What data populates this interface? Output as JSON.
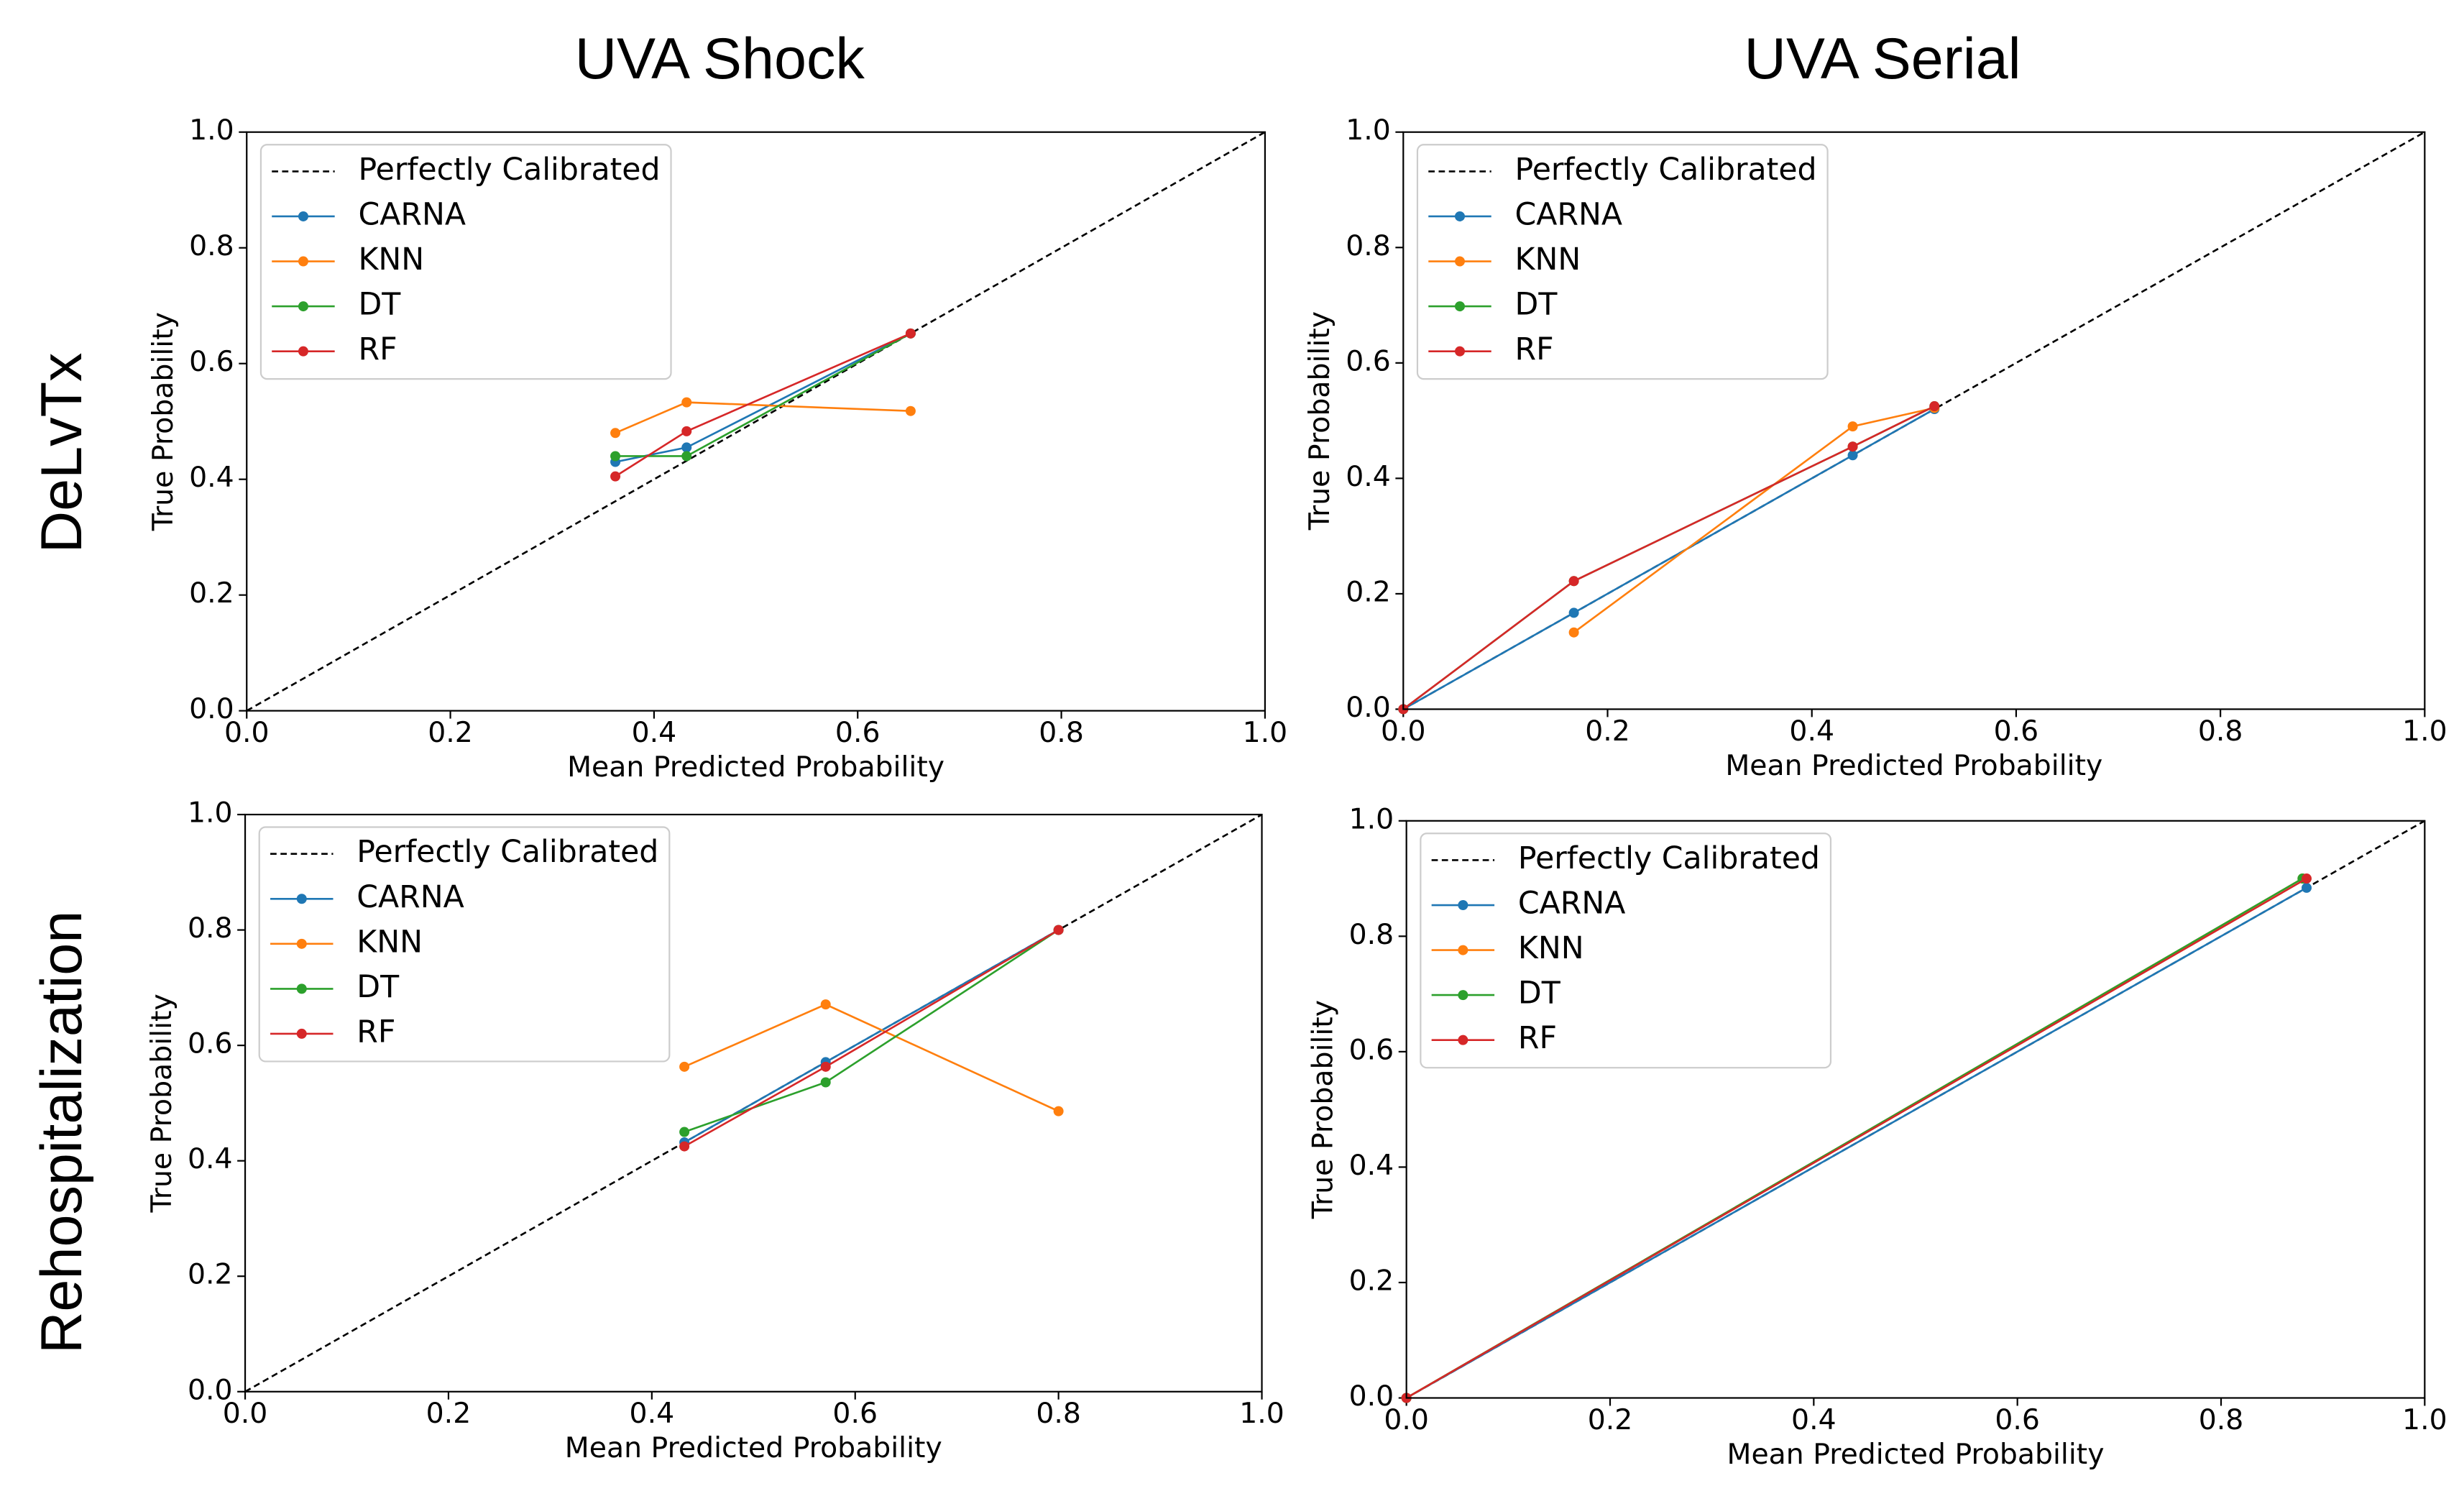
{
  "column_titles": [
    "UVA Shock",
    "UVA Serial"
  ],
  "row_labels": [
    "DeLvTx",
    "Rehospitalization"
  ],
  "chart_data": [
    {
      "type": "line",
      "x_label": "Mean Predicted Probability",
      "y_label": "True Probability",
      "xlim": [
        0,
        1
      ],
      "ylim": [
        0,
        1
      ],
      "legend": "upper left",
      "xticks": [
        {
          "value": 0,
          "label": "0.0"
        },
        {
          "value": 0.2,
          "label": "0.2"
        },
        {
          "value": 0.4,
          "label": "0.4"
        },
        {
          "value": 0.6,
          "label": "0.6"
        },
        {
          "value": 0.8,
          "label": "0.8"
        },
        {
          "value": 1,
          "label": "1.0"
        }
      ],
      "yticks": [
        {
          "value": 0,
          "label": "0.0"
        },
        {
          "value": 0.2,
          "label": "0.2"
        },
        {
          "value": 0.4,
          "label": "0.4"
        },
        {
          "value": 0.6,
          "label": "0.6"
        },
        {
          "value": 0.8,
          "label": "0.8"
        },
        {
          "value": 1,
          "label": "1.0"
        }
      ],
      "series": [
        {
          "name": "Perfectly Calibrated",
          "color": "#000000",
          "dashed": true,
          "markers": false,
          "x": [
            0,
            1
          ],
          "values": [
            0,
            1
          ]
        },
        {
          "name": "CARNA",
          "color": "#1f77b4",
          "dashed": false,
          "markers": true,
          "x": [
            0.362,
            0.432,
            0.652
          ],
          "values": [
            0.43,
            0.455,
            0.652
          ]
        },
        {
          "name": "KNN",
          "color": "#ff7f0e",
          "dashed": false,
          "markers": true,
          "x": [
            0.362,
            0.432,
            0.652
          ],
          "values": [
            0.48,
            0.533,
            0.518
          ]
        },
        {
          "name": "DT",
          "color": "#2ca02c",
          "dashed": false,
          "markers": true,
          "x": [
            0.362,
            0.432,
            0.652
          ],
          "values": [
            0.44,
            0.44,
            0.652
          ]
        },
        {
          "name": "RF",
          "color": "#d62728",
          "dashed": false,
          "markers": true,
          "x": [
            0.362,
            0.432,
            0.652
          ],
          "values": [
            0.405,
            0.483,
            0.652
          ]
        }
      ]
    },
    {
      "type": "line",
      "x_label": "Mean Predicted Probability",
      "y_label": "True Probability",
      "xlim": [
        0,
        1
      ],
      "ylim": [
        0,
        1
      ],
      "legend": "upper left",
      "xticks": [
        {
          "value": 0,
          "label": "0.0"
        },
        {
          "value": 0.2,
          "label": "0.2"
        },
        {
          "value": 0.4,
          "label": "0.4"
        },
        {
          "value": 0.6,
          "label": "0.6"
        },
        {
          "value": 0.8,
          "label": "0.8"
        },
        {
          "value": 1,
          "label": "1.0"
        }
      ],
      "yticks": [
        {
          "value": 0,
          "label": "0.0"
        },
        {
          "value": 0.2,
          "label": "0.2"
        },
        {
          "value": 0.4,
          "label": "0.4"
        },
        {
          "value": 0.6,
          "label": "0.6"
        },
        {
          "value": 0.8,
          "label": "0.8"
        },
        {
          "value": 1,
          "label": "1.0"
        }
      ],
      "series": [
        {
          "name": "Perfectly Calibrated",
          "color": "#000000",
          "dashed": true,
          "markers": false,
          "x": [
            0,
            1
          ],
          "values": [
            0,
            1
          ]
        },
        {
          "name": "CARNA",
          "color": "#1f77b4",
          "dashed": false,
          "markers": true,
          "x": [
            0,
            0.167,
            0.44,
            0.52
          ],
          "values": [
            0,
            0.167,
            0.44,
            0.52
          ]
        },
        {
          "name": "KNN",
          "color": "#ff7f0e",
          "dashed": false,
          "markers": true,
          "x": [
            0.167,
            0.44,
            0.52
          ],
          "values": [
            0.133,
            0.49,
            0.522
          ]
        },
        {
          "name": "DT",
          "color": "#2ca02c",
          "dashed": false,
          "markers": true,
          "x": [
            0,
            0.167,
            0.44,
            0.52
          ],
          "values": [
            0,
            0.222,
            0.455,
            0.525
          ]
        },
        {
          "name": "RF",
          "color": "#d62728",
          "dashed": false,
          "markers": true,
          "x": [
            0,
            0.167,
            0.44,
            0.52
          ],
          "values": [
            0,
            0.222,
            0.455,
            0.525
          ]
        }
      ]
    },
    {
      "type": "line",
      "x_label": "Mean Predicted Probability",
      "y_label": "True Probability",
      "xlim": [
        0,
        1
      ],
      "ylim": [
        0,
        1
      ],
      "legend": "upper left",
      "xticks": [
        {
          "value": 0,
          "label": "0.0"
        },
        {
          "value": 0.2,
          "label": "0.2"
        },
        {
          "value": 0.4,
          "label": "0.4"
        },
        {
          "value": 0.6,
          "label": "0.6"
        },
        {
          "value": 0.8,
          "label": "0.8"
        },
        {
          "value": 1,
          "label": "1.0"
        }
      ],
      "yticks": [
        {
          "value": 0,
          "label": "0.0"
        },
        {
          "value": 0.2,
          "label": "0.2"
        },
        {
          "value": 0.4,
          "label": "0.4"
        },
        {
          "value": 0.6,
          "label": "0.6"
        },
        {
          "value": 0.8,
          "label": "0.8"
        },
        {
          "value": 1,
          "label": "1.0"
        }
      ],
      "series": [
        {
          "name": "Perfectly Calibrated",
          "color": "#000000",
          "dashed": true,
          "markers": false,
          "x": [
            0,
            1
          ],
          "values": [
            0,
            1
          ]
        },
        {
          "name": "CARNA",
          "color": "#1f77b4",
          "dashed": false,
          "markers": true,
          "x": [
            0.432,
            0.571,
            0.8
          ],
          "values": [
            0.432,
            0.571,
            0.8
          ]
        },
        {
          "name": "KNN",
          "color": "#ff7f0e",
          "dashed": false,
          "markers": true,
          "x": [
            0.432,
            0.571,
            0.8
          ],
          "values": [
            0.563,
            0.671,
            0.486
          ]
        },
        {
          "name": "DT",
          "color": "#2ca02c",
          "dashed": false,
          "markers": true,
          "x": [
            0.432,
            0.571,
            0.8
          ],
          "values": [
            0.45,
            0.536,
            0.8
          ]
        },
        {
          "name": "RF",
          "color": "#d62728",
          "dashed": false,
          "markers": true,
          "x": [
            0.432,
            0.571,
            0.8
          ],
          "values": [
            0.425,
            0.563,
            0.8
          ]
        }
      ]
    },
    {
      "type": "line",
      "x_label": "Mean Predicted Probability",
      "y_label": "True Probability",
      "xlim": [
        0,
        1
      ],
      "ylim": [
        0,
        1
      ],
      "legend": "upper left",
      "xticks": [
        {
          "value": 0,
          "label": "0.0"
        },
        {
          "value": 0.2,
          "label": "0.2"
        },
        {
          "value": 0.4,
          "label": "0.4"
        },
        {
          "value": 0.6,
          "label": "0.6"
        },
        {
          "value": 0.8,
          "label": "0.8"
        },
        {
          "value": 1,
          "label": "1.0"
        }
      ],
      "yticks": [
        {
          "value": 0,
          "label": "0.0"
        },
        {
          "value": 0.2,
          "label": "0.2"
        },
        {
          "value": 0.4,
          "label": "0.4"
        },
        {
          "value": 0.6,
          "label": "0.6"
        },
        {
          "value": 0.8,
          "label": "0.8"
        },
        {
          "value": 1,
          "label": "1.0"
        }
      ],
      "series": [
        {
          "name": "Perfectly Calibrated",
          "color": "#000000",
          "dashed": true,
          "markers": false,
          "x": [
            0,
            1
          ],
          "values": [
            0,
            1
          ]
        },
        {
          "name": "CARNA",
          "color": "#1f77b4",
          "dashed": false,
          "markers": true,
          "x": [
            0,
            0.884
          ],
          "values": [
            0,
            0.884
          ]
        },
        {
          "name": "KNN",
          "color": "#ff7f0e",
          "dashed": false,
          "markers": true,
          "x": [
            0,
            0.88
          ],
          "values": [
            0,
            0.9
          ]
        },
        {
          "name": "DT",
          "color": "#2ca02c",
          "dashed": false,
          "markers": true,
          "x": [
            0,
            0.88
          ],
          "values": [
            0,
            0.9
          ]
        },
        {
          "name": "RF",
          "color": "#d62728",
          "dashed": false,
          "markers": true,
          "x": [
            0,
            0.884
          ],
          "values": [
            0,
            0.9
          ]
        }
      ]
    }
  ]
}
